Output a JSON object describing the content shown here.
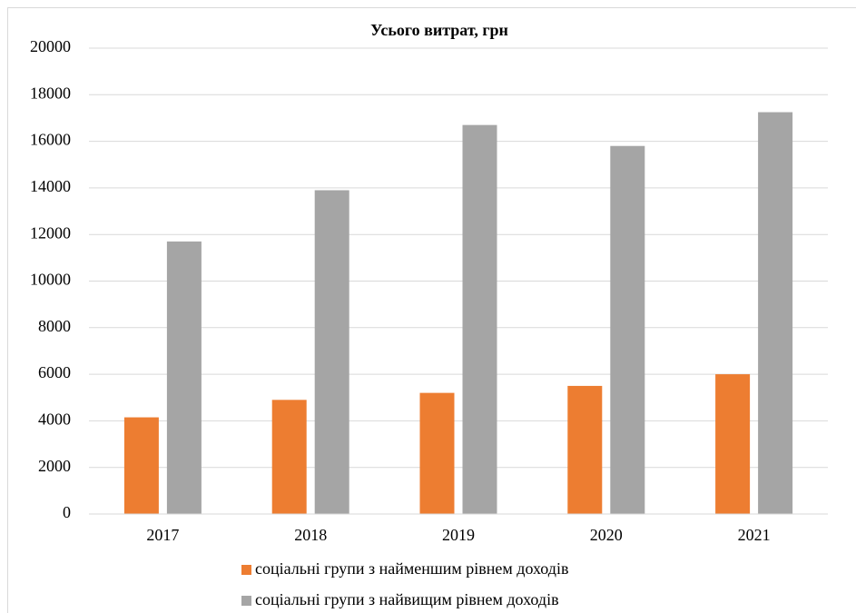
{
  "chart_data": {
    "type": "bar",
    "title": "Усього витрат, грн",
    "categories": [
      "2017",
      "2018",
      "2019",
      "2020",
      "2021"
    ],
    "series": [
      {
        "name": "соціальні групи з найменшим рівнем доходів",
        "color": "#ed7d31",
        "values": [
          4150,
          4900,
          5200,
          5500,
          6000
        ]
      },
      {
        "name": "соціальні групи з найвищим рівнем доходів",
        "color": "#a5a5a5",
        "values": [
          11700,
          13900,
          16700,
          15800,
          17250
        ]
      }
    ],
    "ylim": [
      0,
      20000
    ],
    "yticks": [
      0,
      2000,
      4000,
      6000,
      8000,
      10000,
      12000,
      14000,
      16000,
      18000,
      20000
    ],
    "grid": true,
    "legend": "bottom"
  }
}
